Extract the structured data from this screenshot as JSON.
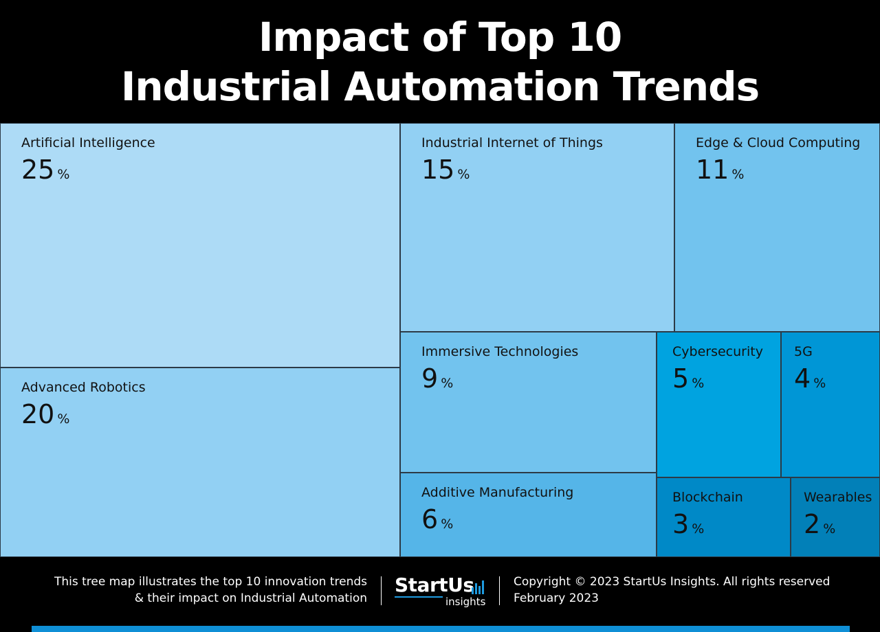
{
  "header": {
    "title_line1": "Impact of Top 10",
    "title_line2": "Industrial Automation Trends"
  },
  "chart_data": {
    "type": "treemap",
    "title": "Impact of Top 10 Industrial Automation Trends",
    "unit": "%",
    "items": [
      {
        "label": "Artificial Intelligence",
        "value": 25,
        "color": "#addbf6"
      },
      {
        "label": "Advanced Robotics",
        "value": 20,
        "color": "#92d0f3"
      },
      {
        "label": "Industrial Internet of Things",
        "value": 15,
        "color": "#92d0f3"
      },
      {
        "label": "Edge & Cloud Computing",
        "value": 11,
        "color": "#72c3ee"
      },
      {
        "label": "Immersive Technologies",
        "value": 9,
        "color": "#72c3ee"
      },
      {
        "label": "Additive Manufacturing",
        "value": 6,
        "color": "#55b5e8"
      },
      {
        "label": "Cybersecurity",
        "value": 5,
        "color": "#00a3e0"
      },
      {
        "label": "5G",
        "value": 4,
        "color": "#0096d6"
      },
      {
        "label": "Blockchain",
        "value": 3,
        "color": "#0089c7"
      },
      {
        "label": "Wearables",
        "value": 2,
        "color": "#0280b8"
      }
    ]
  },
  "footer": {
    "description_line1": "This tree map illustrates the top 10 innovation trends",
    "description_line2": "& their impact on Industrial Automation",
    "logo_brand": "StartUs",
    "logo_sub": "insights",
    "copyright_line1": "Copyright © 2023 StartUs Insights. All rights reserved",
    "copyright_line2": "February 2023",
    "accent_color": "#0f8fd6"
  }
}
